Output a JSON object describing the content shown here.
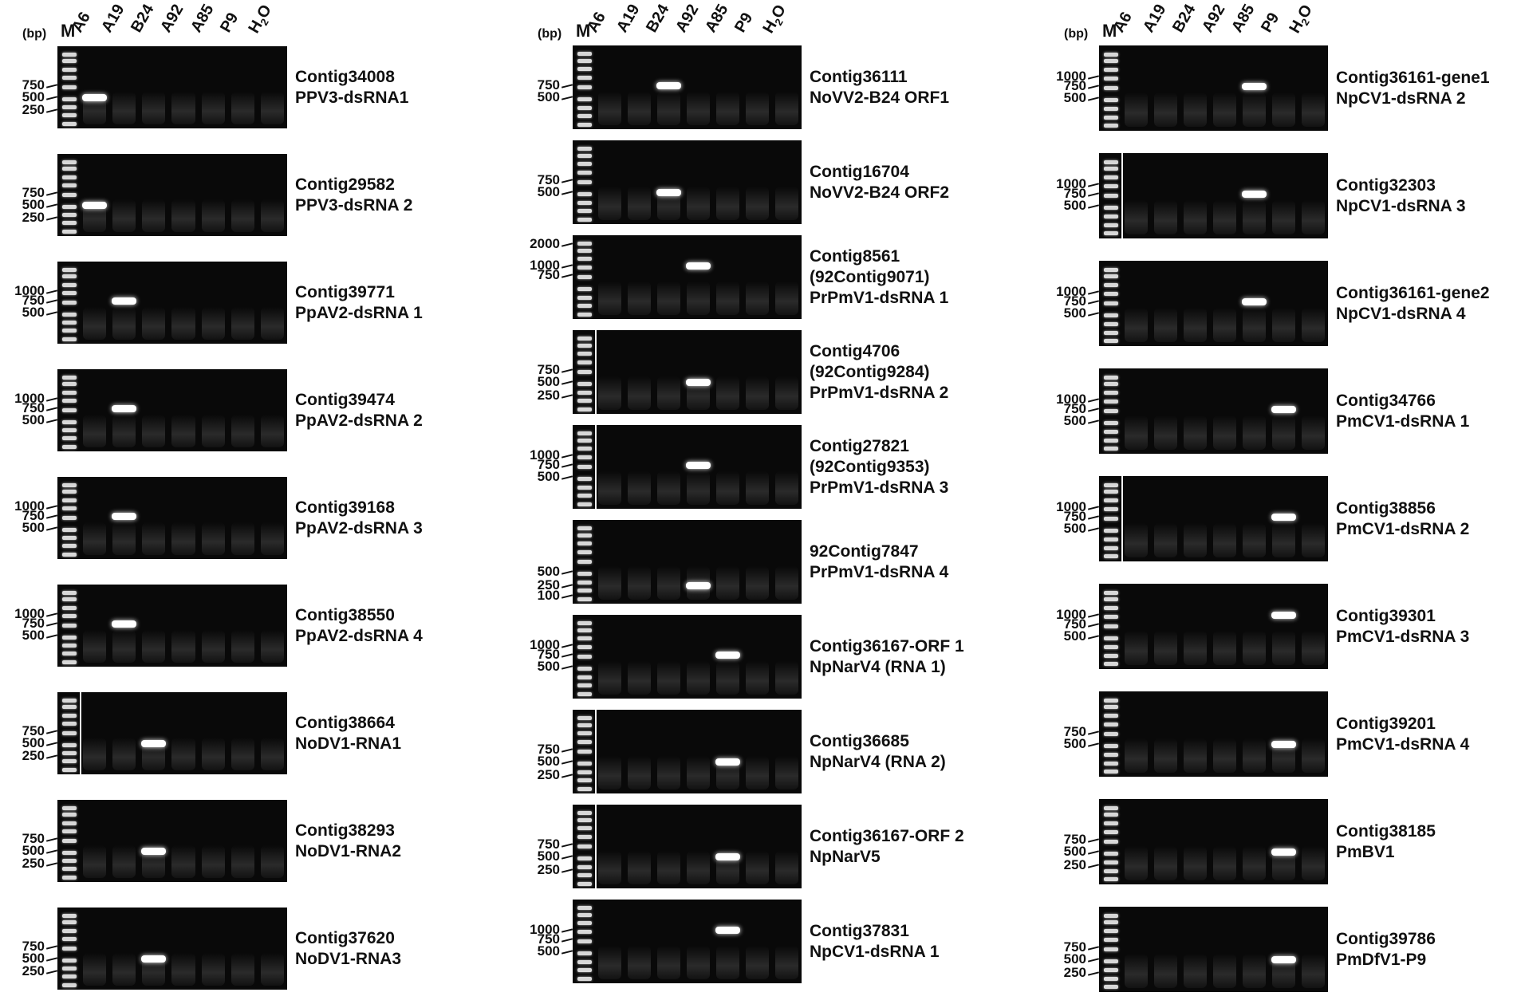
{
  "unit_label": "(bp)",
  "marker_label": "M",
  "lanes": [
    "A6",
    "A19",
    "B24",
    "A92",
    "A85",
    "P9",
    "H2O"
  ],
  "panels": [
    {
      "gels": [
        {
          "lines": [
            "Contig34008",
            "PPV3-dsRNA1"
          ],
          "sizes": [
            "750",
            "500",
            "250"
          ],
          "band_lane": 0,
          "band_size": 500,
          "divider": false
        },
        {
          "lines": [
            "Contig29582",
            "PPV3-dsRNA 2"
          ],
          "sizes": [
            "750",
            "500",
            "250"
          ],
          "band_lane": 0,
          "band_size": 500,
          "divider": false
        },
        {
          "lines": [
            "Contig39771",
            "PpAV2-dsRNA 1"
          ],
          "sizes": [
            "1000",
            "750",
            "500"
          ],
          "band_lane": 1,
          "band_size": 750,
          "divider": false
        },
        {
          "lines": [
            "Contig39474",
            "PpAV2-dsRNA 2"
          ],
          "sizes": [
            "1000",
            "750",
            "500"
          ],
          "band_lane": 1,
          "band_size": 750,
          "divider": false
        },
        {
          "lines": [
            "Contig39168",
            "PpAV2-dsRNA 3"
          ],
          "sizes": [
            "1000",
            "750",
            "500"
          ],
          "band_lane": 1,
          "band_size": 750,
          "divider": false
        },
        {
          "lines": [
            "Contig38550",
            "PpAV2-dsRNA 4"
          ],
          "sizes": [
            "1000",
            "750",
            "500"
          ],
          "band_lane": 1,
          "band_size": 750,
          "divider": false
        },
        {
          "lines": [
            "Contig38664",
            "NoDV1-RNA1"
          ],
          "sizes": [
            "750",
            "500",
            "250"
          ],
          "band_lane": 2,
          "band_size": 500,
          "divider": true
        },
        {
          "lines": [
            "Contig38293",
            "NoDV1-RNA2"
          ],
          "sizes": [
            "750",
            "500",
            "250"
          ],
          "band_lane": 2,
          "band_size": 500,
          "divider": false
        },
        {
          "lines": [
            "Contig37620",
            "NoDV1-RNA3"
          ],
          "sizes": [
            "750",
            "500",
            "250"
          ],
          "band_lane": 2,
          "band_size": 500,
          "divider": false
        }
      ]
    },
    {
      "gels": [
        {
          "lines": [
            "Contig36111",
            "NoVV2-B24 ORF1"
          ],
          "sizes": [
            "750",
            "500"
          ],
          "band_lane": 2,
          "band_size": 750,
          "divider": false
        },
        {
          "lines": [
            "Contig16704",
            "NoVV2-B24 ORF2"
          ],
          "sizes": [
            "750",
            "500"
          ],
          "band_lane": 2,
          "band_size": 500,
          "divider": false
        },
        {
          "lines": [
            "Contig8561",
            "(92Contig9071)",
            "PrPmV1-dsRNA 1"
          ],
          "sizes": [
            "2000",
            "1000",
            "750"
          ],
          "band_lane": 3,
          "band_size": 1000,
          "divider": false
        },
        {
          "lines": [
            "Contig4706",
            "(92Contig9284)",
            "PrPmV1-dsRNA 2"
          ],
          "sizes": [
            "750",
            "500",
            "250"
          ],
          "band_lane": 3,
          "band_size": 500,
          "divider": true
        },
        {
          "lines": [
            "Contig27821",
            "(92Contig9353)",
            "PrPmV1-dsRNA 3"
          ],
          "sizes": [
            "1000",
            "750",
            "500"
          ],
          "band_lane": 3,
          "band_size": 750,
          "divider": true
        },
        {
          "lines": [
            "92Contig7847",
            "PrPmV1-dsRNA 4"
          ],
          "sizes": [
            "500",
            "250",
            "100"
          ],
          "band_lane": 3,
          "band_size": 250,
          "divider": false
        },
        {
          "lines": [
            "Contig36167-ORF 1",
            "NpNarV4 (RNA 1)"
          ],
          "sizes": [
            "1000",
            "750",
            "500"
          ],
          "band_lane": 4,
          "band_size": 750,
          "divider": false
        },
        {
          "lines": [
            "Contig36685",
            "NpNarV4 (RNA 2)"
          ],
          "sizes": [
            "750",
            "500",
            "250"
          ],
          "band_lane": 4,
          "band_size": 500,
          "divider": true
        },
        {
          "lines": [
            "Contig36167-ORF 2",
            "NpNarV5"
          ],
          "sizes": [
            "750",
            "500",
            "250"
          ],
          "band_lane": 4,
          "band_size": 500,
          "divider": true
        },
        {
          "lines": [
            "Contig37831",
            "NpCV1-dsRNA 1"
          ],
          "sizes": [
            "1000",
            "750",
            "500"
          ],
          "band_lane": 4,
          "band_size": 1000,
          "divider": false
        }
      ]
    },
    {
      "gels": [
        {
          "lines": [
            "Contig36161-gene1",
            "NpCV1-dsRNA 2"
          ],
          "sizes": [
            "1000",
            "750",
            "500"
          ],
          "band_lane": 4,
          "band_size": 750,
          "divider": false
        },
        {
          "lines": [
            "Contig32303",
            "NpCV1-dsRNA 3"
          ],
          "sizes": [
            "1000",
            "750",
            "500"
          ],
          "band_lane": 4,
          "band_size": 750,
          "divider": true
        },
        {
          "lines": [
            "Contig36161-gene2",
            "NpCV1-dsRNA 4"
          ],
          "sizes": [
            "1000",
            "750",
            "500"
          ],
          "band_lane": 4,
          "band_size": 750,
          "divider": false
        },
        {
          "lines": [
            "Contig34766",
            "PmCV1-dsRNA 1"
          ],
          "sizes": [
            "1000",
            "750",
            "500"
          ],
          "band_lane": 5,
          "band_size": 750,
          "divider": false
        },
        {
          "lines": [
            "Contig38856",
            "PmCV1-dsRNA 2"
          ],
          "sizes": [
            "1000",
            "750",
            "500"
          ],
          "band_lane": 5,
          "band_size": 750,
          "divider": true
        },
        {
          "lines": [
            "Contig39301",
            "PmCV1-dsRNA 3"
          ],
          "sizes": [
            "1000",
            "750",
            "500"
          ],
          "band_lane": 5,
          "band_size": 1000,
          "divider": false
        },
        {
          "lines": [
            "Contig39201",
            "PmCV1-dsRNA 4"
          ],
          "sizes": [
            "750",
            "500"
          ],
          "band_lane": 5,
          "band_size": 500,
          "divider": false
        },
        {
          "lines": [
            "Contig38185",
            "PmBV1"
          ],
          "sizes": [
            "750",
            "500",
            "250"
          ],
          "band_lane": 5,
          "band_size": 500,
          "divider": false
        },
        {
          "lines": [
            "Contig39786",
            "PmDfV1-P9"
          ],
          "sizes": [
            "750",
            "500",
            "250"
          ],
          "band_lane": 5,
          "band_size": 500,
          "divider": false
        }
      ]
    }
  ]
}
